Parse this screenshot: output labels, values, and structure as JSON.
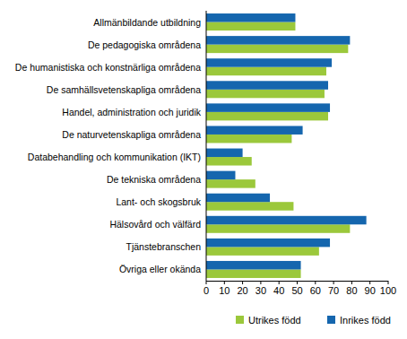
{
  "chart_data": {
    "type": "bar",
    "orientation": "horizontal",
    "categories": [
      "Allmänbildande utbildning",
      "De pedagogiska områdena",
      "De humanistiska och konstnärliga områdena",
      "De samhällsvetenskapliga områdena",
      "Handel, administration och juridik",
      "De naturvetenskapliga områdena",
      "Databehandling och kommunikation (IKT)",
      "De tekniska områdena",
      "Lant- och skogsbruk",
      "Hälsovård och välfärd",
      "Tjänstebranschen",
      "Övriga eller okända"
    ],
    "series": [
      {
        "name": "Utrikes född",
        "color": "#9bc83b",
        "values": [
          49,
          78,
          66,
          65,
          67,
          47,
          25,
          27,
          48,
          79,
          62,
          52
        ]
      },
      {
        "name": "Inrikes född",
        "color": "#1566ae",
        "values": [
          49,
          79,
          69,
          67,
          68,
          53,
          20,
          16,
          35,
          88,
          68,
          52
        ]
      }
    ],
    "ylim": [
      0,
      100
    ],
    "yticks": [
      0,
      10,
      20,
      30,
      40,
      50,
      60,
      70,
      80,
      90,
      100
    ],
    "grid": false,
    "legend": "bottom"
  }
}
